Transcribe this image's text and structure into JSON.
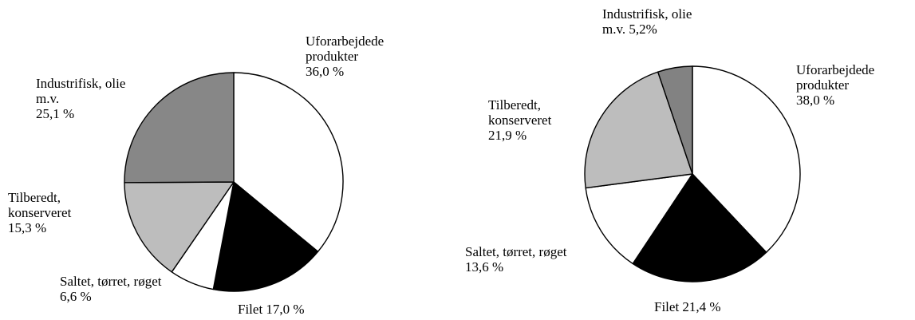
{
  "chart_data": [
    {
      "type": "pie",
      "categories": [
        "Uforarbejdede produkter",
        "Filet",
        "Saltet, tørret, røget",
        "Tilberedt, konserveret",
        "Industrifisk, olie m.v."
      ],
      "values": [
        36.0,
        17.0,
        6.6,
        15.3,
        25.1
      ],
      "value_labels": [
        "36,0 %",
        "17,0 %",
        "6,6 %",
        "15,3 %",
        "25,1 %"
      ],
      "colors": [
        "#ffffff",
        "#000000",
        "#ffffff",
        "#bdbdbd",
        "#878787"
      ]
    },
    {
      "type": "pie",
      "categories": [
        "Uforarbejdede produkter",
        "Filet",
        "Saltet, tørret, røget",
        "Tilberedt, konserveret",
        "Industrifisk, olie m.v."
      ],
      "values": [
        38.0,
        21.4,
        13.6,
        21.9,
        5.2
      ],
      "value_labels": [
        "38,0 %",
        "21,4 %",
        "13,6 %",
        "21,9 %",
        "5,2%"
      ],
      "colors": [
        "#ffffff",
        "#000000",
        "#ffffff",
        "#bdbdbd",
        "#828282"
      ]
    }
  ]
}
